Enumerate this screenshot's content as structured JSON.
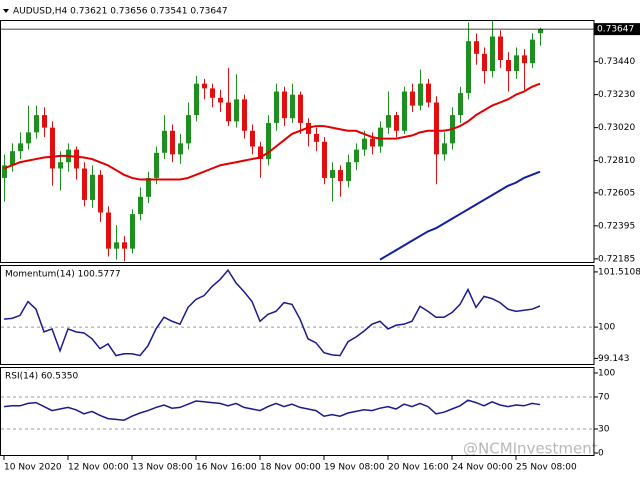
{
  "chart_data": [
    {
      "type": "candlestick",
      "title": "AUDUSD,H4  0.73621 0.73656 0.73541 0.73647",
      "categories": [
        "10 Nov 2020",
        null,
        null,
        null,
        null,
        null,
        null,
        null,
        "12 Nov 00:00",
        null,
        null,
        null,
        null,
        null,
        null,
        null,
        "13 Nov 08:00",
        null,
        null,
        null,
        null,
        null,
        null,
        null,
        "16 Nov 16:00",
        null,
        null,
        null,
        null,
        null,
        null,
        null,
        "18 Nov 00:00",
        null,
        null,
        null,
        null,
        null,
        null,
        null,
        "19 Nov 08:00",
        null,
        null,
        null,
        null,
        null,
        null,
        null,
        "20 Nov 16:00",
        null,
        null,
        null,
        null,
        null,
        null,
        null,
        "24 Nov 00:00",
        null,
        null,
        null,
        null,
        null,
        null,
        null,
        "25 Nov 08:00",
        null,
        null,
        null
      ],
      "open": [
        0.727,
        0.7278,
        0.7287,
        0.7292,
        0.7299,
        0.731,
        0.7302,
        0.7276,
        0.728,
        0.7288,
        0.7276,
        0.7256,
        0.7272,
        0.7248,
        0.7225,
        0.7229,
        0.7225,
        0.7247,
        0.7258,
        0.727,
        0.7286,
        0.73,
        0.7285,
        0.7292,
        0.731,
        0.733,
        0.7327,
        0.7321,
        0.7318,
        0.7306,
        0.732,
        0.73,
        0.729,
        0.7282,
        0.7305,
        0.7325,
        0.7308,
        0.7323,
        0.7305,
        0.7298,
        0.7293,
        0.727,
        0.7275,
        0.7268,
        0.728,
        0.7288,
        0.7295,
        0.729,
        0.7302,
        0.731,
        0.73,
        0.7325,
        0.7316,
        0.733,
        0.7318,
        0.7285,
        0.7292,
        0.731,
        0.7324,
        0.7357,
        0.7349,
        0.7338,
        0.736,
        0.7345,
        0.7338,
        0.7348,
        0.7343,
        0.73621
      ],
      "high": [
        0.7285,
        0.7292,
        0.7299,
        0.7316,
        0.7316,
        0.7315,
        0.7306,
        0.7287,
        0.7292,
        0.729,
        0.728,
        0.7278,
        0.7275,
        0.7252,
        0.724,
        0.7233,
        0.725,
        0.7264,
        0.7274,
        0.729,
        0.731,
        0.7304,
        0.7298,
        0.7318,
        0.7335,
        0.7333,
        0.733,
        0.7326,
        0.734,
        0.7336,
        0.7323,
        0.7304,
        0.7293,
        0.731,
        0.733,
        0.7328,
        0.733,
        0.7325,
        0.7308,
        0.7302,
        0.7296,
        0.728,
        0.7278,
        0.7285,
        0.7292,
        0.73,
        0.7299,
        0.7306,
        0.7325,
        0.7312,
        0.7328,
        0.733,
        0.7339,
        0.7333,
        0.7322,
        0.7299,
        0.7315,
        0.7328,
        0.7369,
        0.7362,
        0.7353,
        0.737,
        0.7364,
        0.735,
        0.7353,
        0.7352,
        0.7362,
        0.73656
      ],
      "low": [
        0.7255,
        0.7274,
        0.7282,
        0.7288,
        0.7295,
        0.7296,
        0.7265,
        0.7262,
        0.7274,
        0.7269,
        0.7252,
        0.7251,
        0.7242,
        0.722,
        0.7218,
        0.7217,
        0.7222,
        0.7243,
        0.7254,
        0.7266,
        0.7282,
        0.728,
        0.7279,
        0.7288,
        0.7306,
        0.732,
        0.7315,
        0.7312,
        0.7303,
        0.7302,
        0.7295,
        0.7285,
        0.727,
        0.7278,
        0.73,
        0.7303,
        0.7305,
        0.7298,
        0.729,
        0.7287,
        0.7266,
        0.7255,
        0.7258,
        0.7264,
        0.7275,
        0.7284,
        0.7285,
        0.7286,
        0.7298,
        0.7296,
        0.7298,
        0.7312,
        0.7313,
        0.7315,
        0.7266,
        0.7281,
        0.7288,
        0.7305,
        0.732,
        0.7342,
        0.733,
        0.7334,
        0.734,
        0.7325,
        0.7333,
        0.7326,
        0.734,
        0.73541
      ],
      "close": [
        0.7278,
        0.7287,
        0.7292,
        0.7299,
        0.731,
        0.7302,
        0.7276,
        0.728,
        0.7288,
        0.7276,
        0.7256,
        0.7272,
        0.7248,
        0.7225,
        0.7229,
        0.7225,
        0.7247,
        0.7258,
        0.727,
        0.7286,
        0.73,
        0.7285,
        0.7292,
        0.731,
        0.733,
        0.7327,
        0.7321,
        0.7318,
        0.7306,
        0.732,
        0.73,
        0.729,
        0.7282,
        0.7305,
        0.7325,
        0.7308,
        0.7323,
        0.7305,
        0.7298,
        0.7293,
        0.727,
        0.7275,
        0.7268,
        0.728,
        0.7288,
        0.7295,
        0.729,
        0.7302,
        0.731,
        0.73,
        0.7325,
        0.7316,
        0.733,
        0.7318,
        0.7285,
        0.7292,
        0.731,
        0.7324,
        0.7357,
        0.7349,
        0.7338,
        0.736,
        0.7345,
        0.7338,
        0.7348,
        0.7343,
        0.7358,
        0.73647
      ],
      "bull_color": "#1f8f1f",
      "bear_color": "#e01010",
      "overlays": [
        {
          "color": "#e00000",
          "values": [
            0.7276,
            0.7278,
            0.728,
            0.7281,
            0.7282,
            0.7283,
            0.72835,
            0.7284,
            0.7284,
            0.72835,
            0.7283,
            0.7282,
            0.728,
            0.7278,
            0.7275,
            0.7272,
            0.727,
            0.7269,
            0.7269,
            0.7269,
            0.7269,
            0.7269,
            0.7269,
            0.727,
            0.7272,
            0.7274,
            0.7276,
            0.7278,
            0.7279,
            0.728,
            0.7281,
            0.7282,
            0.7283,
            0.7286,
            0.729,
            0.7294,
            0.7298,
            0.73,
            0.7302,
            0.7303,
            0.7303,
            0.7302,
            0.7301,
            0.73,
            0.73,
            0.7298,
            0.7296,
            0.7295,
            0.7295,
            0.7295,
            0.7296,
            0.7297,
            0.7299,
            0.73,
            0.73,
            0.73,
            0.7301,
            0.7303,
            0.7306,
            0.731,
            0.7313,
            0.7316,
            0.7318,
            0.732,
            0.7323,
            0.7325,
            0.7328,
            0.733
          ]
        },
        {
          "color": "#1020a0",
          "values": [
            null,
            null,
            null,
            null,
            null,
            null,
            null,
            null,
            null,
            null,
            null,
            null,
            null,
            null,
            null,
            null,
            null,
            null,
            null,
            null,
            null,
            null,
            null,
            null,
            null,
            null,
            null,
            null,
            null,
            null,
            null,
            null,
            null,
            null,
            null,
            null,
            null,
            null,
            null,
            null,
            null,
            null,
            null,
            null,
            null,
            null,
            null,
            0.7218,
            0.7221,
            0.7224,
            0.7227,
            0.723,
            0.7233,
            0.7236,
            0.7238,
            0.7241,
            0.7244,
            0.7247,
            0.725,
            0.7253,
            0.7256,
            0.7259,
            0.7262,
            0.7265,
            0.7267,
            0.727,
            0.7272,
            0.7274
          ]
        }
      ],
      "ylim": [
        0.72165,
        0.73705
      ],
      "yticks": [
        0.72185,
        0.72395,
        0.72605,
        {
          "value": 0.7281,
          "label": "0.72810"
        },
        {
          "value": 0.7302,
          "label": "0.73020"
        },
        {
          "value": 0.7323,
          "label": "0.73230"
        },
        {
          "value": 0.7344,
          "label": "0.73440"
        }
      ],
      "last_price": 0.73647
    },
    {
      "type": "line",
      "title": "Momentum(14) 100.5777",
      "color": "#1a1a8c",
      "values": [
        100.22,
        100.24,
        100.32,
        100.7,
        100.49,
        99.87,
        99.95,
        99.35,
        99.95,
        99.87,
        99.84,
        99.68,
        99.41,
        99.54,
        99.22,
        99.27,
        99.27,
        99.22,
        99.49,
        99.95,
        100.27,
        100.16,
        100.08,
        100.54,
        100.76,
        100.86,
        101.11,
        101.3,
        101.56,
        101.21,
        100.97,
        100.7,
        100.16,
        100.35,
        100.43,
        100.67,
        100.62,
        100.22,
        99.68,
        99.57,
        99.3,
        99.24,
        99.22,
        99.6,
        99.73,
        99.89,
        100.08,
        100.16,
        99.95,
        100.05,
        100.08,
        100.16,
        100.57,
        100.43,
        100.27,
        100.27,
        100.4,
        100.62,
        101.03,
        100.54,
        100.84,
        100.78,
        100.67,
        100.49,
        100.43,
        100.46,
        100.49,
        100.5777
      ],
      "ylim": [
        98.99,
        101.7
      ],
      "yticks": [
        99.143,
        100,
        101.5108
      ],
      "levels": [
        100
      ]
    },
    {
      "type": "line",
      "title": "RSI(14) 60.5350",
      "color": "#1a1a8c",
      "values": [
        58,
        59,
        59,
        62,
        63,
        58,
        53,
        55,
        57,
        54,
        49,
        52,
        47,
        43,
        42,
        41,
        46,
        50,
        53,
        57,
        60,
        56,
        57,
        61,
        65,
        64,
        63,
        62,
        59,
        62,
        57,
        55,
        53,
        58,
        62,
        58,
        61,
        57,
        55,
        53,
        46,
        48,
        46,
        50,
        52,
        54,
        53,
        56,
        58,
        55,
        61,
        58,
        62,
        58,
        49,
        51,
        55,
        59,
        66,
        63,
        59,
        64,
        60,
        58,
        60,
        59,
        62,
        60.535
      ],
      "ylim": [
        -2.5,
        107.5
      ],
      "yticks": [
        0,
        30,
        70,
        100
      ],
      "levels": [
        70,
        30
      ]
    }
  ],
  "watermark": "@NCMInvestment"
}
